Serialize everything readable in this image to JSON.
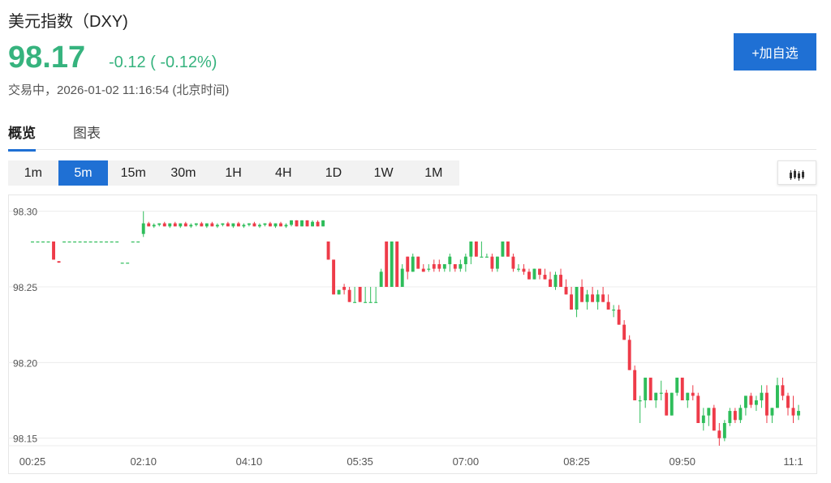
{
  "header": {
    "title": "美元指数（DXY)",
    "price": "98.17",
    "change": "-0.12 ( -0.12%)",
    "status": "交易中，2026-01-02 11:16:54 (北京时间)",
    "add_button": "+加自选"
  },
  "tabs": [
    {
      "label": "概览",
      "active": true
    },
    {
      "label": "图表",
      "active": false
    }
  ],
  "periods": [
    {
      "label": "1m",
      "active": false
    },
    {
      "label": "5m",
      "active": true
    },
    {
      "label": "15m",
      "active": false
    },
    {
      "label": "30m",
      "active": false
    },
    {
      "label": "1H",
      "active": false
    },
    {
      "label": "4H",
      "active": false
    },
    {
      "label": "1D",
      "active": false
    },
    {
      "label": "1W",
      "active": false
    },
    {
      "label": "1M",
      "active": false
    }
  ],
  "chart_type_icon": "candlestick-icon",
  "colors": {
    "up": "#2ebd5a",
    "down": "#ee3b49",
    "accent": "#1f70d4",
    "price": "#36b37e"
  },
  "chart_data": {
    "type": "candlestick",
    "ylim": [
      98.145,
      98.31
    ],
    "yticks": [
      "98.30",
      "98.25",
      "98.20",
      "98.15"
    ],
    "xticks": [
      {
        "index": 0,
        "label": "00:25"
      },
      {
        "index": 21,
        "label": "02:10"
      },
      {
        "index": 41,
        "label": "04:10"
      },
      {
        "index": 62,
        "label": "05:35"
      },
      {
        "index": 82,
        "label": "07:00"
      },
      {
        "index": 103,
        "label": "08:25"
      },
      {
        "index": 123,
        "label": "09:50"
      },
      {
        "index": 144,
        "label": "11:1"
      }
    ],
    "candles": [
      [
        98.28,
        98.28,
        98.28,
        98.28
      ],
      [
        98.28,
        98.28,
        98.28,
        98.28
      ],
      [
        98.28,
        98.28,
        98.28,
        98.28
      ],
      [
        98.28,
        98.28,
        98.28,
        98.28
      ],
      [
        98.28,
        98.28,
        98.268,
        98.268
      ],
      [
        98.267,
        98.267,
        98.266,
        98.266
      ],
      [
        98.28,
        98.28,
        98.28,
        98.28
      ],
      [
        98.28,
        98.28,
        98.28,
        98.28
      ],
      [
        98.28,
        98.28,
        98.28,
        98.28
      ],
      [
        98.28,
        98.28,
        98.28,
        98.28
      ],
      [
        98.28,
        98.28,
        98.28,
        98.28
      ],
      [
        98.28,
        98.28,
        98.28,
        98.28
      ],
      [
        98.28,
        98.28,
        98.28,
        98.28
      ],
      [
        98.28,
        98.28,
        98.28,
        98.28
      ],
      [
        98.28,
        98.28,
        98.28,
        98.28
      ],
      [
        98.28,
        98.28,
        98.28,
        98.28
      ],
      [
        98.28,
        98.28,
        98.28,
        98.28
      ],
      [
        98.266,
        98.266,
        98.266,
        98.266
      ],
      [
        98.266,
        98.266,
        98.266,
        98.266
      ],
      [
        98.28,
        98.28,
        98.28,
        98.28
      ],
      [
        98.28,
        98.28,
        98.28,
        98.28
      ],
      [
        98.285,
        98.3,
        98.283,
        98.292
      ],
      [
        98.292,
        98.293,
        98.29,
        98.29
      ],
      [
        98.29,
        98.292,
        98.289,
        98.291
      ],
      [
        98.291,
        98.292,
        98.29,
        98.292
      ],
      [
        98.292,
        98.293,
        98.29,
        98.29
      ],
      [
        98.29,
        98.292,
        98.289,
        98.292
      ],
      [
        98.292,
        98.293,
        98.29,
        98.29
      ],
      [
        98.29,
        98.292,
        98.289,
        98.292
      ],
      [
        98.292,
        98.293,
        98.29,
        98.29
      ],
      [
        98.29,
        98.292,
        98.289,
        98.291
      ],
      [
        98.291,
        98.292,
        98.29,
        98.292
      ],
      [
        98.292,
        98.293,
        98.29,
        98.29
      ],
      [
        98.29,
        98.292,
        98.289,
        98.292
      ],
      [
        98.292,
        98.293,
        98.29,
        98.29
      ],
      [
        98.29,
        98.292,
        98.289,
        98.291
      ],
      [
        98.291,
        98.292,
        98.29,
        98.292
      ],
      [
        98.292,
        98.293,
        98.29,
        98.29
      ],
      [
        98.29,
        98.292,
        98.289,
        98.292
      ],
      [
        98.292,
        98.293,
        98.29,
        98.29
      ],
      [
        98.29,
        98.292,
        98.289,
        98.291
      ],
      [
        98.291,
        98.292,
        98.29,
        98.292
      ],
      [
        98.292,
        98.293,
        98.29,
        98.29
      ],
      [
        98.29,
        98.292,
        98.289,
        98.291
      ],
      [
        98.291,
        98.292,
        98.29,
        98.292
      ],
      [
        98.292,
        98.293,
        98.29,
        98.29
      ],
      [
        98.29,
        98.292,
        98.289,
        98.292
      ],
      [
        98.292,
        98.293,
        98.29,
        98.29
      ],
      [
        98.29,
        98.292,
        98.289,
        98.291
      ],
      [
        98.291,
        98.294,
        98.29,
        98.294
      ],
      [
        98.294,
        98.294,
        98.29,
        98.29
      ],
      [
        98.29,
        98.294,
        98.29,
        98.294
      ],
      [
        98.294,
        98.294,
        98.29,
        98.29
      ],
      [
        98.29,
        98.294,
        98.29,
        98.293
      ],
      [
        98.293,
        98.294,
        98.29,
        98.29
      ],
      [
        98.29,
        98.294,
        98.29,
        98.294
      ],
      [
        98.28,
        98.28,
        98.268,
        98.268
      ],
      [
        98.268,
        98.268,
        98.245,
        98.245
      ],
      [
        98.245,
        98.248,
        98.245,
        98.248
      ],
      [
        98.25,
        98.252,
        98.245,
        98.248
      ],
      [
        98.248,
        98.25,
        98.24,
        98.24
      ],
      [
        98.24,
        98.25,
        98.24,
        98.24
      ],
      [
        98.25,
        98.25,
        98.24,
        98.24
      ],
      [
        98.24,
        98.25,
        98.24,
        98.24
      ],
      [
        98.24,
        98.25,
        98.24,
        98.24
      ],
      [
        98.24,
        98.25,
        98.24,
        98.24
      ],
      [
        98.25,
        98.262,
        98.25,
        98.26
      ],
      [
        98.28,
        98.28,
        98.25,
        98.25
      ],
      [
        98.25,
        98.28,
        98.25,
        98.28
      ],
      [
        98.28,
        98.28,
        98.25,
        98.25
      ],
      [
        98.25,
        98.265,
        98.25,
        98.262
      ],
      [
        98.27,
        98.27,
        98.255,
        98.26
      ],
      [
        98.26,
        98.272,
        98.26,
        98.27
      ],
      [
        98.27,
        98.27,
        98.262,
        98.262
      ],
      [
        98.262,
        98.265,
        98.26,
        98.26
      ],
      [
        98.262,
        98.265,
        98.26,
        98.262
      ],
      [
        98.265,
        98.268,
        98.26,
        98.262
      ],
      [
        98.265,
        98.268,
        98.26,
        98.262
      ],
      [
        98.262,
        98.265,
        98.26,
        98.265
      ],
      [
        98.265,
        98.272,
        98.26,
        98.27
      ],
      [
        98.265,
        98.265,
        98.26,
        98.262
      ],
      [
        98.262,
        98.268,
        98.26,
        98.265
      ],
      [
        98.265,
        98.272,
        98.26,
        98.27
      ],
      [
        98.27,
        98.28,
        98.265,
        98.28
      ],
      [
        98.28,
        98.28,
        98.27,
        98.27
      ],
      [
        98.27,
        98.28,
        98.27,
        98.27
      ],
      [
        98.27,
        98.272,
        98.27,
        98.27
      ],
      [
        98.27,
        98.272,
        98.26,
        98.262
      ],
      [
        98.262,
        98.27,
        98.26,
        98.27
      ],
      [
        98.27,
        98.28,
        98.27,
        98.28
      ],
      [
        98.28,
        98.28,
        98.27,
        98.27
      ],
      [
        98.27,
        98.272,
        98.26,
        98.262
      ],
      [
        98.262,
        98.265,
        98.26,
        98.262
      ],
      [
        98.262,
        98.265,
        98.258,
        98.26
      ],
      [
        98.26,
        98.262,
        98.255,
        98.255
      ],
      [
        98.255,
        98.262,
        98.255,
        98.262
      ],
      [
        98.262,
        98.262,
        98.255,
        98.258
      ],
      [
        98.258,
        98.262,
        98.255,
        98.255
      ],
      [
        98.255,
        98.26,
        98.25,
        98.25
      ],
      [
        98.25,
        98.26,
        98.248,
        98.258
      ],
      [
        98.258,
        98.262,
        98.25,
        98.25
      ],
      [
        98.25,
        98.255,
        98.245,
        98.245
      ],
      [
        98.245,
        98.25,
        98.235,
        98.235
      ],
      [
        98.235,
        98.25,
        98.23,
        98.25
      ],
      [
        98.25,
        98.255,
        98.24,
        98.24
      ],
      [
        98.24,
        98.248,
        98.235,
        98.245
      ],
      [
        98.245,
        98.25,
        98.24,
        98.24
      ],
      [
        98.24,
        98.248,
        98.235,
        98.245
      ],
      [
        98.245,
        98.25,
        98.24,
        98.24
      ],
      [
        98.24,
        98.245,
        98.235,
        98.235
      ],
      [
        98.235,
        98.238,
        98.23,
        98.235
      ],
      [
        98.235,
        98.238,
        98.225,
        98.225
      ],
      [
        98.225,
        98.228,
        98.215,
        98.215
      ],
      [
        98.215,
        98.218,
        98.195,
        98.195
      ],
      [
        98.195,
        98.198,
        98.175,
        98.175
      ],
      [
        98.175,
        98.178,
        98.16,
        98.175
      ],
      [
        98.175,
        98.19,
        98.17,
        98.19
      ],
      [
        98.19,
        98.19,
        98.175,
        98.175
      ],
      [
        98.175,
        98.18,
        98.17,
        98.18
      ],
      [
        98.18,
        98.188,
        98.175,
        98.18
      ],
      [
        98.18,
        98.182,
        98.165,
        98.165
      ],
      [
        98.165,
        98.18,
        98.165,
        98.18
      ],
      [
        98.18,
        98.19,
        98.178,
        98.19
      ],
      [
        98.19,
        98.19,
        98.175,
        98.175
      ],
      [
        98.175,
        98.18,
        98.17,
        98.18
      ],
      [
        98.18,
        98.185,
        98.175,
        98.178
      ],
      [
        98.178,
        98.18,
        98.16,
        98.16
      ],
      [
        98.16,
        98.17,
        98.155,
        98.165
      ],
      [
        98.165,
        98.17,
        98.158,
        98.17
      ],
      [
        98.17,
        98.172,
        98.155,
        98.155
      ],
      [
        98.155,
        98.16,
        98.145,
        98.15
      ],
      [
        98.15,
        98.162,
        98.148,
        98.16
      ],
      [
        98.16,
        98.17,
        98.158,
        98.168
      ],
      [
        98.168,
        98.17,
        98.16,
        98.162
      ],
      [
        98.162,
        98.172,
        98.16,
        98.17
      ],
      [
        98.17,
        98.178,
        98.165,
        98.178
      ],
      [
        98.178,
        98.18,
        98.17,
        98.172
      ],
      [
        98.172,
        98.178,
        98.168,
        98.175
      ],
      [
        98.175,
        98.185,
        98.17,
        98.18
      ],
      [
        98.18,
        98.185,
        98.16,
        98.165
      ],
      [
        98.165,
        98.17,
        98.16,
        98.17
      ],
      [
        98.17,
        98.19,
        98.17,
        98.185
      ],
      [
        98.185,
        98.19,
        98.175,
        98.178
      ],
      [
        98.178,
        98.18,
        98.165,
        98.17
      ],
      [
        98.17,
        98.178,
        98.16,
        98.165
      ],
      [
        98.165,
        98.172,
        98.162,
        98.168
      ]
    ]
  }
}
